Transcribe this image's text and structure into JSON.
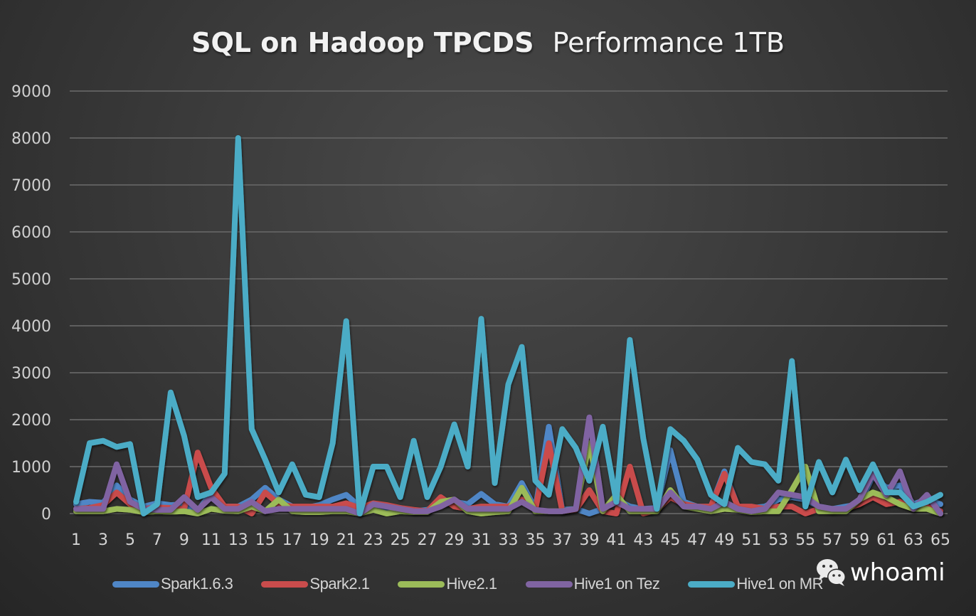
{
  "chart_data": {
    "type": "line",
    "title_bold": "SQL on Hadoop TPCDS",
    "title_light": "Performance  1TB",
    "xlabel": "",
    "ylabel": "",
    "ylim": [
      0,
      9000
    ],
    "yticks": [
      "0",
      "1000",
      "2000",
      "3000",
      "4000",
      "5000",
      "6000",
      "7000",
      "8000",
      "9000"
    ],
    "ytick_values": [
      0,
      1000,
      2000,
      3000,
      4000,
      5000,
      6000,
      7000,
      8000,
      9000
    ],
    "xticks": [
      "1",
      "3",
      "5",
      "7",
      "9",
      "11",
      "13",
      "15",
      "17",
      "19",
      "21",
      "23",
      "25",
      "27",
      "29",
      "31",
      "33",
      "35",
      "37",
      "39",
      "41",
      "43",
      "45",
      "47",
      "49",
      "51",
      "53",
      "55",
      "57",
      "59",
      "61",
      "63",
      "65"
    ],
    "xtick_values": [
      1,
      3,
      5,
      7,
      9,
      11,
      13,
      15,
      17,
      19,
      21,
      23,
      25,
      27,
      29,
      31,
      33,
      35,
      37,
      39,
      41,
      43,
      45,
      47,
      49,
      51,
      53,
      55,
      57,
      59,
      61,
      63,
      65
    ],
    "xlim": [
      1,
      65
    ],
    "grid": true,
    "legend_position": "bottom",
    "series": [
      {
        "name": "Spark1.6.3",
        "color": "#4f86c6",
        "values": [
          200,
          250,
          230,
          600,
          300,
          150,
          220,
          180,
          200,
          50,
          450,
          150,
          150,
          300,
          550,
          300,
          150,
          120,
          180,
          300,
          400,
          150,
          120,
          100,
          120,
          50,
          80,
          200,
          250,
          200,
          420,
          200,
          150,
          650,
          100,
          1850,
          80,
          100,
          0,
          100,
          300,
          150,
          100,
          120,
          1350,
          250,
          150,
          150,
          900,
          150,
          120,
          150,
          300,
          350,
          300,
          150,
          100,
          150,
          200,
          800,
          550,
          600,
          200,
          300,
          200
        ]
      },
      {
        "name": "Spark2.1",
        "color": "#c94c4c",
        "values": [
          100,
          120,
          180,
          450,
          200,
          100,
          130,
          120,
          100,
          1300,
          550,
          150,
          150,
          0,
          450,
          200,
          150,
          150,
          150,
          150,
          220,
          120,
          220,
          180,
          120,
          80,
          50,
          350,
          150,
          100,
          150,
          150,
          150,
          300,
          80,
          1500,
          50,
          80,
          500,
          50,
          0,
          1000,
          0,
          80,
          350,
          200,
          150,
          150,
          850,
          150,
          150,
          100,
          150,
          150,
          0,
          100,
          50,
          100,
          200,
          350,
          200,
          250,
          100,
          150,
          50
        ]
      },
      {
        "name": "Hive2.1",
        "color": "#9bbb59",
        "values": [
          50,
          50,
          50,
          100,
          80,
          30,
          50,
          40,
          50,
          0,
          100,
          60,
          50,
          150,
          50,
          300,
          50,
          30,
          30,
          50,
          50,
          0,
          80,
          0,
          50,
          30,
          30,
          250,
          300,
          50,
          0,
          30,
          50,
          550,
          50,
          50,
          50,
          100,
          1500,
          50,
          400,
          50,
          50,
          50,
          500,
          150,
          100,
          50,
          100,
          80,
          30,
          50,
          50,
          500,
          1000,
          50,
          50,
          50,
          300,
          450,
          350,
          200,
          100,
          100,
          0
        ]
      },
      {
        "name": "Hive1 on Tez",
        "color": "#8064a2",
        "values": [
          100,
          100,
          100,
          1050,
          250,
          100,
          80,
          80,
          350,
          80,
          350,
          100,
          100,
          250,
          50,
          100,
          100,
          100,
          100,
          100,
          100,
          0,
          200,
          150,
          100,
          50,
          50,
          150,
          300,
          100,
          100,
          100,
          100,
          250,
          80,
          50,
          50,
          100,
          2050,
          100,
          250,
          100,
          100,
          100,
          450,
          150,
          150,
          100,
          250,
          100,
          50,
          100,
          450,
          400,
          350,
          150,
          100,
          100,
          300,
          850,
          400,
          900,
          100,
          400,
          0
        ]
      },
      {
        "name": "Hive1 on MR",
        "color": "#4bacc6",
        "values": [
          250,
          1500,
          1550,
          1420,
          1480,
          0,
          200,
          2580,
          1650,
          350,
          450,
          850,
          8000,
          1800,
          1150,
          450,
          1050,
          400,
          350,
          1500,
          4100,
          0,
          1000,
          1000,
          350,
          1550,
          350,
          1000,
          1900,
          1000,
          4150,
          650,
          2750,
          3550,
          700,
          400,
          1800,
          1400,
          700,
          1850,
          250,
          3700,
          1600,
          100,
          1800,
          1550,
          1150,
          400,
          200,
          1400,
          1100,
          1050,
          700,
          3250,
          150,
          1100,
          450,
          1150,
          500,
          1050,
          450,
          450,
          150,
          250,
          400
        ]
      }
    ]
  },
  "watermark": {
    "text": "whoami",
    "icon": "wechat-icon"
  }
}
